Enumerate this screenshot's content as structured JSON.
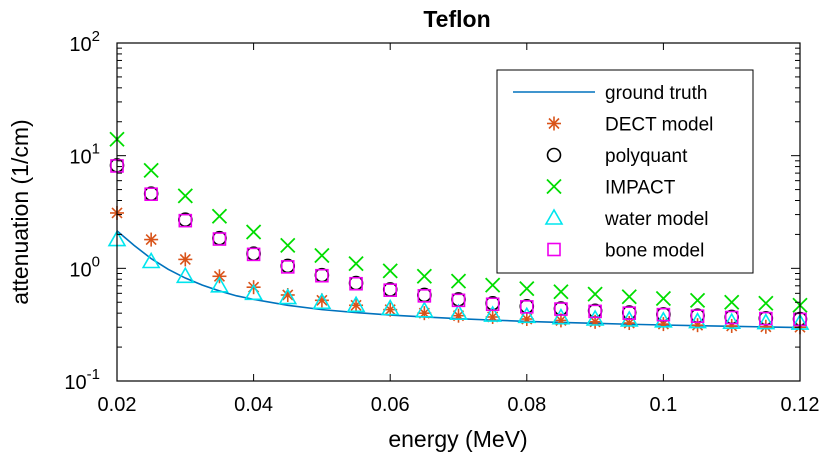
{
  "chart_data": {
    "type": "scatter",
    "title": "Teflon",
    "xlabel": "energy (MeV)",
    "ylabel": "attenuation (1/cm)",
    "xlim": [
      0.02,
      0.12
    ],
    "ylim": [
      0.1,
      100
    ],
    "yscale": "log",
    "x_ticks": [
      0.02,
      0.04,
      0.06,
      0.08,
      0.1,
      0.12
    ],
    "x_tick_labels": [
      "0.02",
      "0.04",
      "0.06",
      "0.08",
      "0.1",
      "0.12"
    ],
    "y_ticks": [
      {
        "value": 0.1,
        "base": "10",
        "exp": "-1"
      },
      {
        "value": 1,
        "base": "10",
        "exp": "0"
      },
      {
        "value": 10,
        "base": "10",
        "exp": "1"
      },
      {
        "value": 100,
        "base": "10",
        "exp": "2"
      }
    ],
    "grid": false,
    "legend_position": "top-right",
    "x": [
      0.02,
      0.025,
      0.03,
      0.035,
      0.04,
      0.045,
      0.05,
      0.055,
      0.06,
      0.065,
      0.07,
      0.075,
      0.08,
      0.085,
      0.09,
      0.095,
      0.1,
      0.105,
      0.11,
      0.115,
      0.12
    ],
    "ground_truth": {
      "name": "ground truth",
      "color": "#0072BD",
      "x": [
        0.02,
        0.0225,
        0.025,
        0.0275,
        0.03,
        0.0325,
        0.035,
        0.0375,
        0.04,
        0.045,
        0.05,
        0.055,
        0.06,
        0.065,
        0.07,
        0.075,
        0.08,
        0.085,
        0.09,
        0.095,
        0.1,
        0.105,
        0.11,
        0.115,
        0.12
      ],
      "values": [
        2.15,
        1.6,
        1.22,
        0.98,
        0.82,
        0.71,
        0.63,
        0.57,
        0.53,
        0.47,
        0.43,
        0.405,
        0.385,
        0.37,
        0.357,
        0.347,
        0.338,
        0.331,
        0.325,
        0.319,
        0.314,
        0.31,
        0.306,
        0.302,
        0.298
      ]
    },
    "series": [
      {
        "name": "DECT model",
        "marker": "asterisk",
        "color": "#D95319",
        "values": [
          3.1,
          1.8,
          1.2,
          0.85,
          0.68,
          0.58,
          0.52,
          0.47,
          0.43,
          0.4,
          0.38,
          0.37,
          0.355,
          0.345,
          0.335,
          0.327,
          0.32,
          0.313,
          0.308,
          0.303,
          0.3
        ]
      },
      {
        "name": "polyquant",
        "marker": "circle",
        "color": "#000000",
        "values": [
          8.2,
          4.6,
          2.7,
          1.85,
          1.35,
          1.05,
          0.87,
          0.74,
          0.65,
          0.58,
          0.53,
          0.49,
          0.46,
          0.44,
          0.42,
          0.405,
          0.39,
          0.38,
          0.37,
          0.36,
          0.355
        ]
      },
      {
        "name": "IMPACT",
        "marker": "cross",
        "color": "#00DD00",
        "values": [
          14,
          7.4,
          4.4,
          2.9,
          2.1,
          1.6,
          1.3,
          1.1,
          0.95,
          0.85,
          0.77,
          0.71,
          0.66,
          0.62,
          0.59,
          0.56,
          0.54,
          0.52,
          0.5,
          0.49,
          0.47
        ]
      },
      {
        "name": "water model",
        "marker": "triangle",
        "color": "#00E5EE",
        "values": [
          1.8,
          1.15,
          0.85,
          0.7,
          0.6,
          0.55,
          0.5,
          0.47,
          0.44,
          0.42,
          0.4,
          0.385,
          0.375,
          0.365,
          0.355,
          0.348,
          0.342,
          0.337,
          0.333,
          0.33,
          0.327
        ]
      },
      {
        "name": "bone model",
        "marker": "square",
        "color": "#EE00EE",
        "values": [
          8.1,
          4.55,
          2.65,
          1.82,
          1.33,
          1.03,
          0.86,
          0.73,
          0.64,
          0.57,
          0.52,
          0.48,
          0.455,
          0.435,
          0.415,
          0.4,
          0.388,
          0.376,
          0.366,
          0.358,
          0.352
        ]
      }
    ]
  }
}
